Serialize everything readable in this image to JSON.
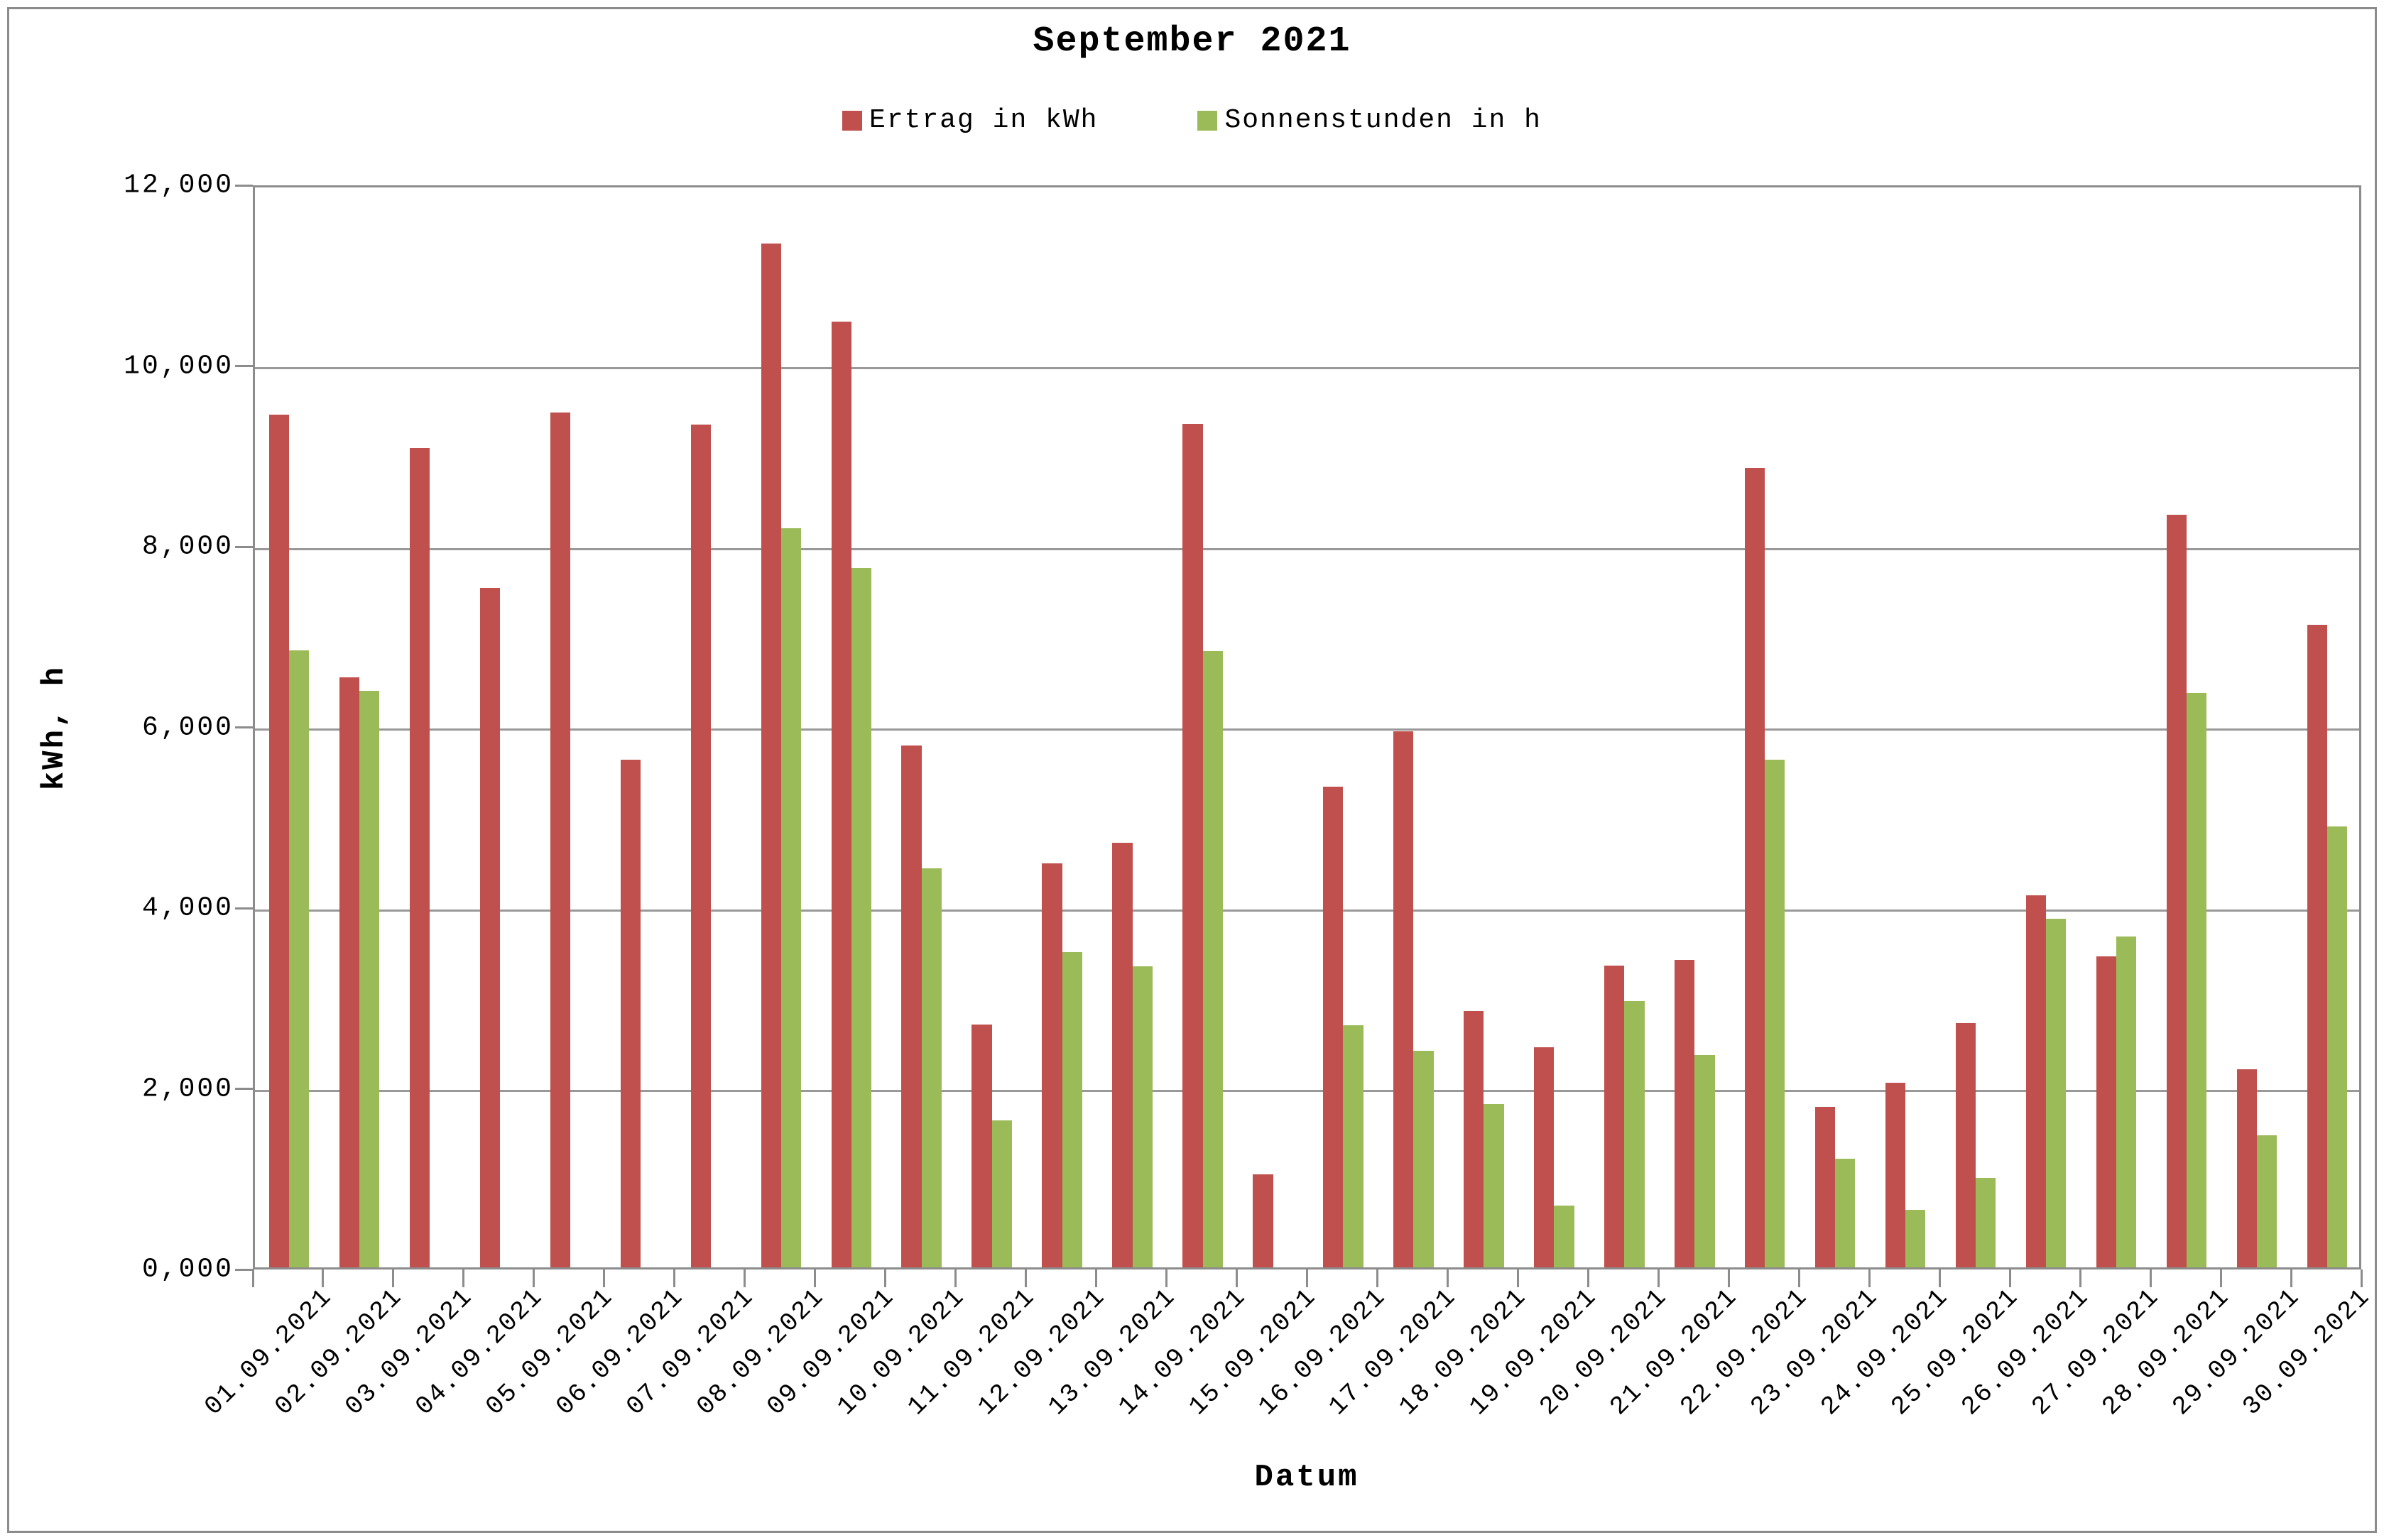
{
  "chart_data": {
    "type": "bar",
    "title": "September 2021",
    "xlabel": "Datum",
    "ylabel": "kWh, h",
    "ylim": [
      0,
      12
    ],
    "y_tick_labels": [
      "12,000",
      "10,000",
      "8,000",
      "6,000",
      "4,000",
      "2,000",
      "0,000"
    ],
    "grid": "horizontal",
    "legend_position": "top-center",
    "categories": [
      "01.09.2021",
      "02.09.2021",
      "03.09.2021",
      "04.09.2021",
      "05.09.2021",
      "06.09.2021",
      "07.09.2021",
      "08.09.2021",
      "09.09.2021",
      "10.09.2021",
      "11.09.2021",
      "12.09.2021",
      "13.09.2021",
      "14.09.2021",
      "15.09.2021",
      "16.09.2021",
      "17.09.2021",
      "18.09.2021",
      "19.09.2021",
      "20.09.2021",
      "21.09.2021",
      "22.09.2021",
      "23.09.2021",
      "24.09.2021",
      "25.09.2021",
      "26.09.2021",
      "27.09.2021",
      "28.09.2021",
      "29.09.2021",
      "30.09.2021"
    ],
    "series": [
      {
        "name": "Ertrag in kWh",
        "color": "#C0504D",
        "values": [
          9.44,
          6.53,
          9.07,
          7.52,
          9.46,
          5.62,
          9.33,
          11.33,
          10.47,
          5.78,
          2.69,
          4.47,
          4.7,
          9.34,
          1.03,
          5.32,
          5.93,
          2.84,
          2.44,
          3.34,
          3.4,
          8.85,
          1.78,
          2.04,
          2.7,
          4.12,
          3.44,
          8.33,
          2.19,
          7.11
        ]
      },
      {
        "name": "Sonnenstunden in h",
        "color": "#9BBB59",
        "values": [
          6.83,
          6.38,
          0,
          0,
          0,
          0,
          0,
          8.18,
          7.74,
          4.42,
          1.63,
          3.49,
          3.33,
          6.82,
          0,
          2.68,
          2.4,
          1.81,
          0.68,
          2.95,
          2.35,
          5.62,
          1.2,
          0.64,
          0.99,
          3.86,
          3.66,
          6.36,
          1.46,
          4.88
        ]
      }
    ]
  },
  "colors": {
    "grid": "#999999",
    "frame": "#8C8C8C",
    "background": "#FFFFFF",
    "text": "#000000"
  }
}
